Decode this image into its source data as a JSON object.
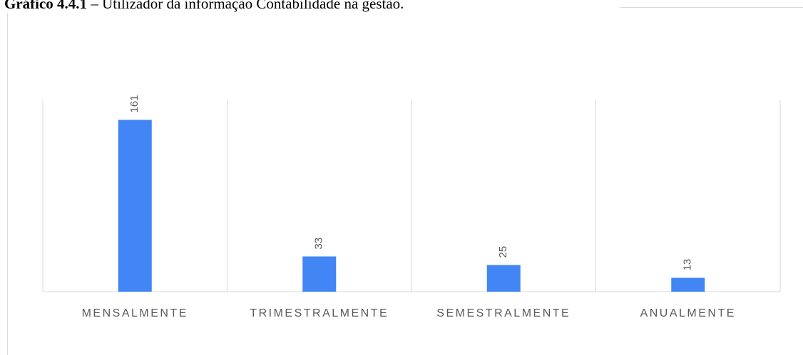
{
  "chart_data": {
    "type": "bar",
    "title_bold": "Gráfico 4.4.1",
    "title": "– Utilizador da informação Contabilidade na gestão.",
    "categories": [
      "MENSALMENTE",
      "TRIMESTRALMENTE",
      "SEMESTRALMENTE",
      "ANUALMENTE"
    ],
    "values": [
      161,
      33,
      25,
      13
    ],
    "color": "#4285f4",
    "ylim": [
      0,
      180
    ]
  }
}
